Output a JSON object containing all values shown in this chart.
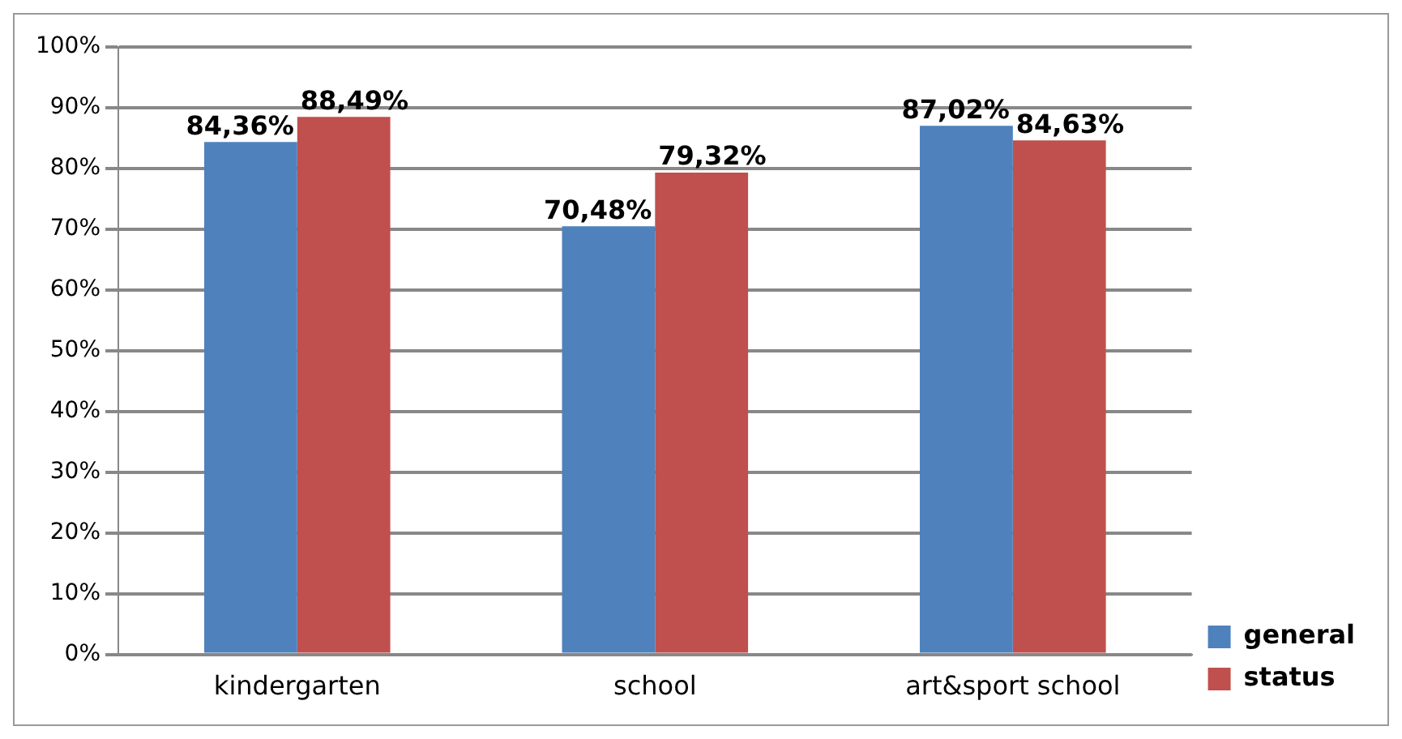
{
  "chart_data": {
    "type": "bar",
    "categories": [
      "kindergarten",
      "school",
      "art&sport school"
    ],
    "series": [
      {
        "name": "general",
        "color": "#4f81bd",
        "values": [
          84.36,
          70.48,
          87.02
        ],
        "value_labels": [
          "84,36%",
          "70,48%",
          "87,02%"
        ]
      },
      {
        "name": "status",
        "color": "#c0504d",
        "values": [
          88.49,
          79.32,
          84.63
        ],
        "value_labels": [
          "88,49%",
          "79,32%",
          "84,63%"
        ]
      }
    ],
    "ylim": [
      0,
      100
    ],
    "yticks": [
      {
        "value": 0,
        "label": "0%"
      },
      {
        "value": 10,
        "label": "10%"
      },
      {
        "value": 20,
        "label": "20%"
      },
      {
        "value": 30,
        "label": "30%"
      },
      {
        "value": 40,
        "label": "40%"
      },
      {
        "value": 50,
        "label": "50%"
      },
      {
        "value": 60,
        "label": "60%"
      },
      {
        "value": 70,
        "label": "70%"
      },
      {
        "value": 80,
        "label": "80%"
      },
      {
        "value": 90,
        "label": "90%"
      },
      {
        "value": 100,
        "label": "100%"
      }
    ],
    "grid": "y",
    "legend": "bottom right"
  }
}
